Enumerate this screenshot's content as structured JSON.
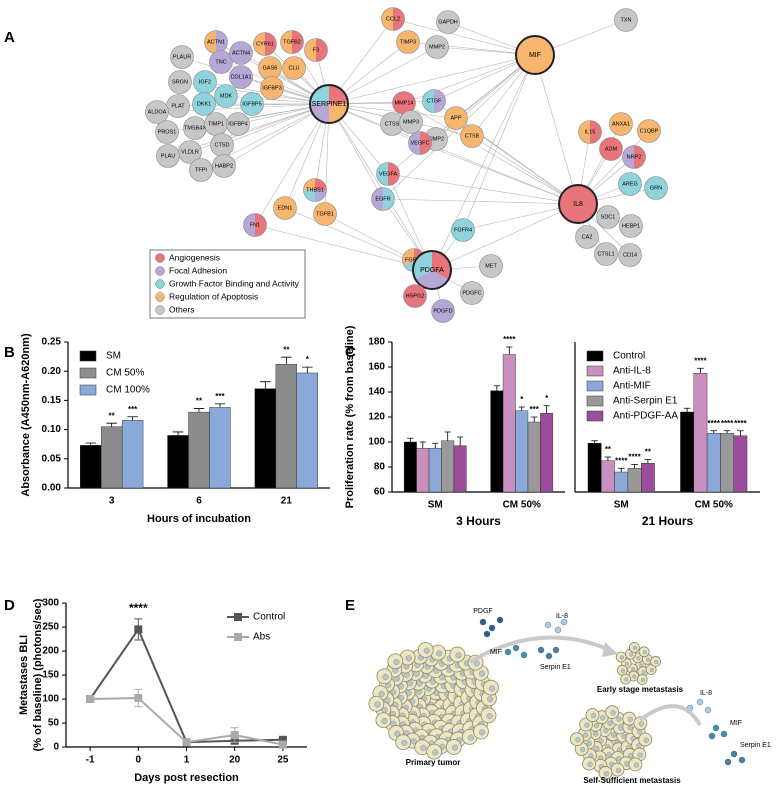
{
  "network": {
    "label": "A",
    "nodes": [
      {
        "label": "ACTN1",
        "colors": [
          "#b6a8d6",
          "#f6b66f"
        ]
      },
      {
        "label": "CYR61",
        "colors": [
          "#e8747c",
          "#f6b66f"
        ]
      },
      {
        "label": "TGFB2",
        "colors": [
          "#e8747c",
          "#f6b66f"
        ]
      },
      {
        "label": "F3",
        "colors": [
          "#e8747c",
          "#f6b66f"
        ]
      },
      {
        "label": "TNC",
        "colors": [
          "#b6a8d6"
        ]
      },
      {
        "label": "ACTN4",
        "colors": [
          "#b6a8d6"
        ]
      },
      {
        "label": "GAS6",
        "colors": [
          "#f6b66f"
        ]
      },
      {
        "label": "CLU",
        "colors": [
          "#f6b66f"
        ]
      },
      {
        "label": "COL1A1",
        "colors": [
          "#b6a8d6"
        ]
      },
      {
        "label": "IGF2",
        "colors": [
          "#8fd3dc"
        ]
      },
      {
        "label": "PLAUR",
        "colors": [
          "#c7c7c7"
        ]
      },
      {
        "label": "SRGN",
        "colors": [
          "#c7c7c7"
        ]
      },
      {
        "label": "MDK",
        "colors": [
          "#8fd3dc"
        ]
      },
      {
        "label": "IGFBP3",
        "colors": [
          "#f6b66f"
        ]
      },
      {
        "label": "IGFBP5",
        "colors": [
          "#8fd3dc"
        ]
      },
      {
        "label": "DKK1",
        "colors": [
          "#8fd3dc"
        ]
      },
      {
        "label": "PLAT",
        "colors": [
          "#c7c7c7"
        ]
      },
      {
        "label": "ALDOA",
        "colors": [
          "#c7c7c7"
        ]
      },
      {
        "label": "TMSB4X",
        "colors": [
          "#c7c7c7"
        ]
      },
      {
        "label": "TIMP1",
        "colors": [
          "#c7c7c7"
        ]
      },
      {
        "label": "IGFBP4",
        "colors": [
          "#c7c7c7"
        ]
      },
      {
        "label": "PROS1",
        "colors": [
          "#c7c7c7"
        ]
      },
      {
        "label": "VLDLR",
        "colors": [
          "#c7c7c7"
        ]
      },
      {
        "label": "CTSD",
        "colors": [
          "#c7c7c7"
        ]
      },
      {
        "label": "PLAU",
        "colors": [
          "#c7c7c7"
        ]
      },
      {
        "label": "HABP2",
        "colors": [
          "#c7c7c7"
        ]
      },
      {
        "label": "TFPI",
        "colors": [
          "#c7c7c7"
        ]
      },
      {
        "label": "SERPINE1",
        "colors": [
          "#e8747c",
          "#f6b66f",
          "#b6a8d6",
          "#8fd3dc"
        ]
      },
      {
        "label": "CCL2",
        "colors": [
          "#e8747c",
          "#f6b66f"
        ]
      },
      {
        "label": "TIMP3",
        "colors": [
          "#f6b66f"
        ]
      },
      {
        "label": "GAPDH",
        "colors": [
          "#c7c7c7"
        ]
      },
      {
        "label": "MMP2",
        "colors": [
          "#c7c7c7"
        ]
      },
      {
        "label": "TXN",
        "colors": [
          "#c7c7c7"
        ]
      },
      {
        "label": "MIF",
        "colors": [
          "#f6b66f"
        ]
      },
      {
        "label": "MMP14",
        "colors": [
          "#e8747c"
        ]
      },
      {
        "label": "CTGF",
        "colors": [
          "#b6a8d6",
          "#8fd3dc"
        ]
      },
      {
        "label": "CTSS",
        "colors": [
          "#c7c7c7"
        ]
      },
      {
        "label": "MMP3",
        "colors": [
          "#c7c7c7"
        ]
      },
      {
        "label": "APP",
        "colors": [
          "#f6b66f"
        ]
      },
      {
        "label": "TIMP2",
        "colors": [
          "#c7c7c7"
        ]
      },
      {
        "label": "CTSB",
        "colors": [
          "#f6b66f"
        ]
      },
      {
        "label": "VEGFC",
        "colors": [
          "#e8747c",
          "#b6a8d6"
        ]
      },
      {
        "label": "IL15",
        "colors": [
          "#e8747c",
          "#f6b66f"
        ]
      },
      {
        "label": "ANXA1",
        "colors": [
          "#f6b66f"
        ]
      },
      {
        "label": "C1QBP",
        "colors": [
          "#f6b66f"
        ]
      },
      {
        "label": "ADM",
        "colors": [
          "#e8747c"
        ]
      },
      {
        "label": "NRP2",
        "colors": [
          "#e8747c",
          "#b6a8d6"
        ]
      },
      {
        "label": "IL8",
        "colors": [
          "#e8747c"
        ]
      },
      {
        "label": "AREG",
        "colors": [
          "#8fd3dc"
        ]
      },
      {
        "label": "GRN",
        "colors": [
          "#8fd3dc"
        ]
      },
      {
        "label": "SDC1",
        "colors": [
          "#c7c7c7"
        ]
      },
      {
        "label": "HEBP1",
        "colors": [
          "#c7c7c7"
        ]
      },
      {
        "label": "CA2",
        "colors": [
          "#c7c7c7"
        ]
      },
      {
        "label": "CTSL1",
        "colors": [
          "#c7c7c7"
        ]
      },
      {
        "label": "CD14",
        "colors": [
          "#c7c7c7"
        ]
      },
      {
        "label": "THBS1",
        "colors": [
          "#e8747c",
          "#b6a8d6",
          "#8fd3dc",
          "#f6b66f"
        ]
      },
      {
        "label": "VEGFA",
        "colors": [
          "#e8747c",
          "#8fd3dc"
        ]
      },
      {
        "label": "EGFR",
        "colors": [
          "#8fd3dc",
          "#b6a8d6"
        ]
      },
      {
        "label": "EDN1",
        "colors": [
          "#f6b66f"
        ]
      },
      {
        "label": "TGFB1",
        "colors": [
          "#f6b66f"
        ]
      },
      {
        "label": "FN1",
        "colors": [
          "#e8747c",
          "#b6a8d6"
        ]
      },
      {
        "label": "FGFR4",
        "colors": [
          "#8fd3dc"
        ]
      },
      {
        "label": "FGFR2",
        "colors": [
          "#e8747c",
          "#8fd3dc",
          "#f6b66f"
        ]
      },
      {
        "label": "PDGFA",
        "colors": [
          "#e8747c",
          "#b6a8d6",
          "#8fd3dc"
        ]
      },
      {
        "label": "MET",
        "colors": [
          "#c7c7c7"
        ]
      },
      {
        "label": "HSPG2",
        "colors": [
          "#e8747c"
        ]
      },
      {
        "label": "PDGFC",
        "colors": [
          "#c7c7c7"
        ]
      },
      {
        "label": "PDGFD",
        "colors": [
          "#b6a8d6"
        ]
      }
    ],
    "legend": [
      {
        "label": "Angiogenesis",
        "color": "#e8747c"
      },
      {
        "label": "Focal Adhesion",
        "color": "#b6a8d6"
      },
      {
        "label": "Growth Factor Binding and Activity",
        "color": "#8fd3dc"
      },
      {
        "label": "Regulation of Apoptosis",
        "color": "#f6b66f"
      },
      {
        "label": "Others",
        "color": "#c7c7c7"
      }
    ]
  },
  "chart_data": [
    {
      "type": "bar",
      "label": "B",
      "ylabel": "Absorbance (A450nm-A620nm)",
      "xlabel": "Hours of incubation",
      "categories": [
        "3",
        "6",
        "21"
      ],
      "legend": "upper left",
      "ylim": [
        0,
        0.25
      ],
      "yticks": [
        {
          "value": 0,
          "label": "0.00"
        },
        {
          "value": 0.05,
          "label": "0.05"
        },
        {
          "value": 0.1,
          "label": "0.10"
        },
        {
          "value": 0.15,
          "label": "0.15"
        },
        {
          "value": 0.2,
          "label": "0.20"
        },
        {
          "value": 0.25,
          "label": "0.25"
        }
      ],
      "series": [
        {
          "name": "SM",
          "color": "#000000",
          "values": [
            0.073,
            0.09,
            0.17
          ],
          "errors": [
            0.004,
            0.006,
            0.012
          ]
        },
        {
          "name": "CM 50%",
          "color": "#8c8c8c",
          "values": [
            0.105,
            0.13,
            0.212
          ],
          "errors": [
            0.006,
            0.006,
            0.012
          ],
          "significance": [
            "**",
            "**",
            "**"
          ]
        },
        {
          "name": "CM 100%",
          "color": "#8aa8d8",
          "values": [
            0.116,
            0.138,
            0.197
          ],
          "errors": [
            0.006,
            0.006,
            0.01
          ],
          "significance": [
            "***",
            "***",
            "*"
          ]
        }
      ]
    },
    {
      "type": "bar",
      "label": "C",
      "ylabel": "Proliferation rate (% from baseline)",
      "group": "3 Hours",
      "categories": [
        "SM",
        "CM 50%"
      ],
      "ylim": [
        60,
        180
      ],
      "yticks": [
        60,
        80,
        100,
        120,
        140,
        160,
        180
      ],
      "series": [
        {
          "color": "#000000",
          "values": [
            100,
            141
          ],
          "errors": [
            3,
            4
          ]
        },
        {
          "color": "#c98fbd",
          "values": [
            95,
            170
          ],
          "errors": [
            5,
            6
          ],
          "significance": [
            null,
            "****"
          ]
        },
        {
          "color": "#8aa8d8",
          "values": [
            95,
            125
          ],
          "errors": [
            4,
            3
          ],
          "significance": [
            null,
            "*"
          ]
        },
        {
          "color": "#999999",
          "values": [
            101,
            116
          ],
          "errors": [
            7,
            4
          ],
          "significance": [
            null,
            "***"
          ]
        },
        {
          "color": "#9b4d9b",
          "values": [
            97,
            123
          ],
          "errors": [
            7,
            6
          ],
          "significance": [
            null,
            "*"
          ]
        }
      ]
    },
    {
      "type": "bar",
      "group": "21 Hours",
      "categories": [
        "SM",
        "CM 50%"
      ],
      "ylim": [
        60,
        180
      ],
      "legend": "upper left",
      "series": [
        {
          "name": "Control",
          "color": "#000000",
          "values": [
            99,
            124
          ],
          "errors": [
            2,
            3
          ]
        },
        {
          "name": "Anti-IL-8",
          "color": "#c98fbd",
          "values": [
            85,
            155
          ],
          "errors": [
            3,
            4
          ],
          "significance": [
            "**",
            "****"
          ]
        },
        {
          "name": "Anti-MIF",
          "color": "#8aa8d8",
          "values": [
            76,
            107
          ],
          "errors": [
            3,
            2
          ],
          "significance": [
            "****",
            "****"
          ]
        },
        {
          "name": "Anti-Serpin E1",
          "color": "#999999",
          "values": [
            79,
            107
          ],
          "errors": [
            3,
            2
          ],
          "significance": [
            "****",
            "****"
          ]
        },
        {
          "name": "Anti-PDGF-AA",
          "color": "#9b4d9b",
          "values": [
            83,
            105
          ],
          "errors": [
            3,
            4
          ],
          "significance": [
            "**",
            "****"
          ]
        }
      ]
    },
    {
      "type": "line",
      "label": "D",
      "ylabel": "Metastases BLI",
      "ylabel_unit": "(% of baseline) (photons/sec)",
      "xlabel": "Days post resection",
      "categories": [
        "-1",
        "0",
        "1",
        "20",
        "25"
      ],
      "legend": "upper right",
      "ylim": [
        0,
        300
      ],
      "yticks": [
        0,
        50,
        100,
        150,
        200,
        250,
        300
      ],
      "series": [
        {
          "name": "Control",
          "color": "#555555",
          "values": [
            100,
            245,
            10,
            13,
            15
          ],
          "errors": [
            0,
            22,
            3,
            5,
            3
          ],
          "significance": [
            null,
            "****",
            null,
            null,
            null
          ]
        },
        {
          "name": "Abs",
          "color": "#aaaaaa",
          "values": [
            100,
            102,
            10,
            25,
            5
          ],
          "errors": [
            4,
            18,
            3,
            15,
            3
          ]
        }
      ]
    }
  ],
  "illustration": {
    "label": "E",
    "texts": [
      "PDGF",
      "IL-8",
      "MIF",
      "Serpin E1",
      "Early stage metastasis",
      "Primary tumor",
      "IL-8",
      "MIF",
      "Serpin E1",
      "Self-Sufficient metastasis"
    ]
  }
}
